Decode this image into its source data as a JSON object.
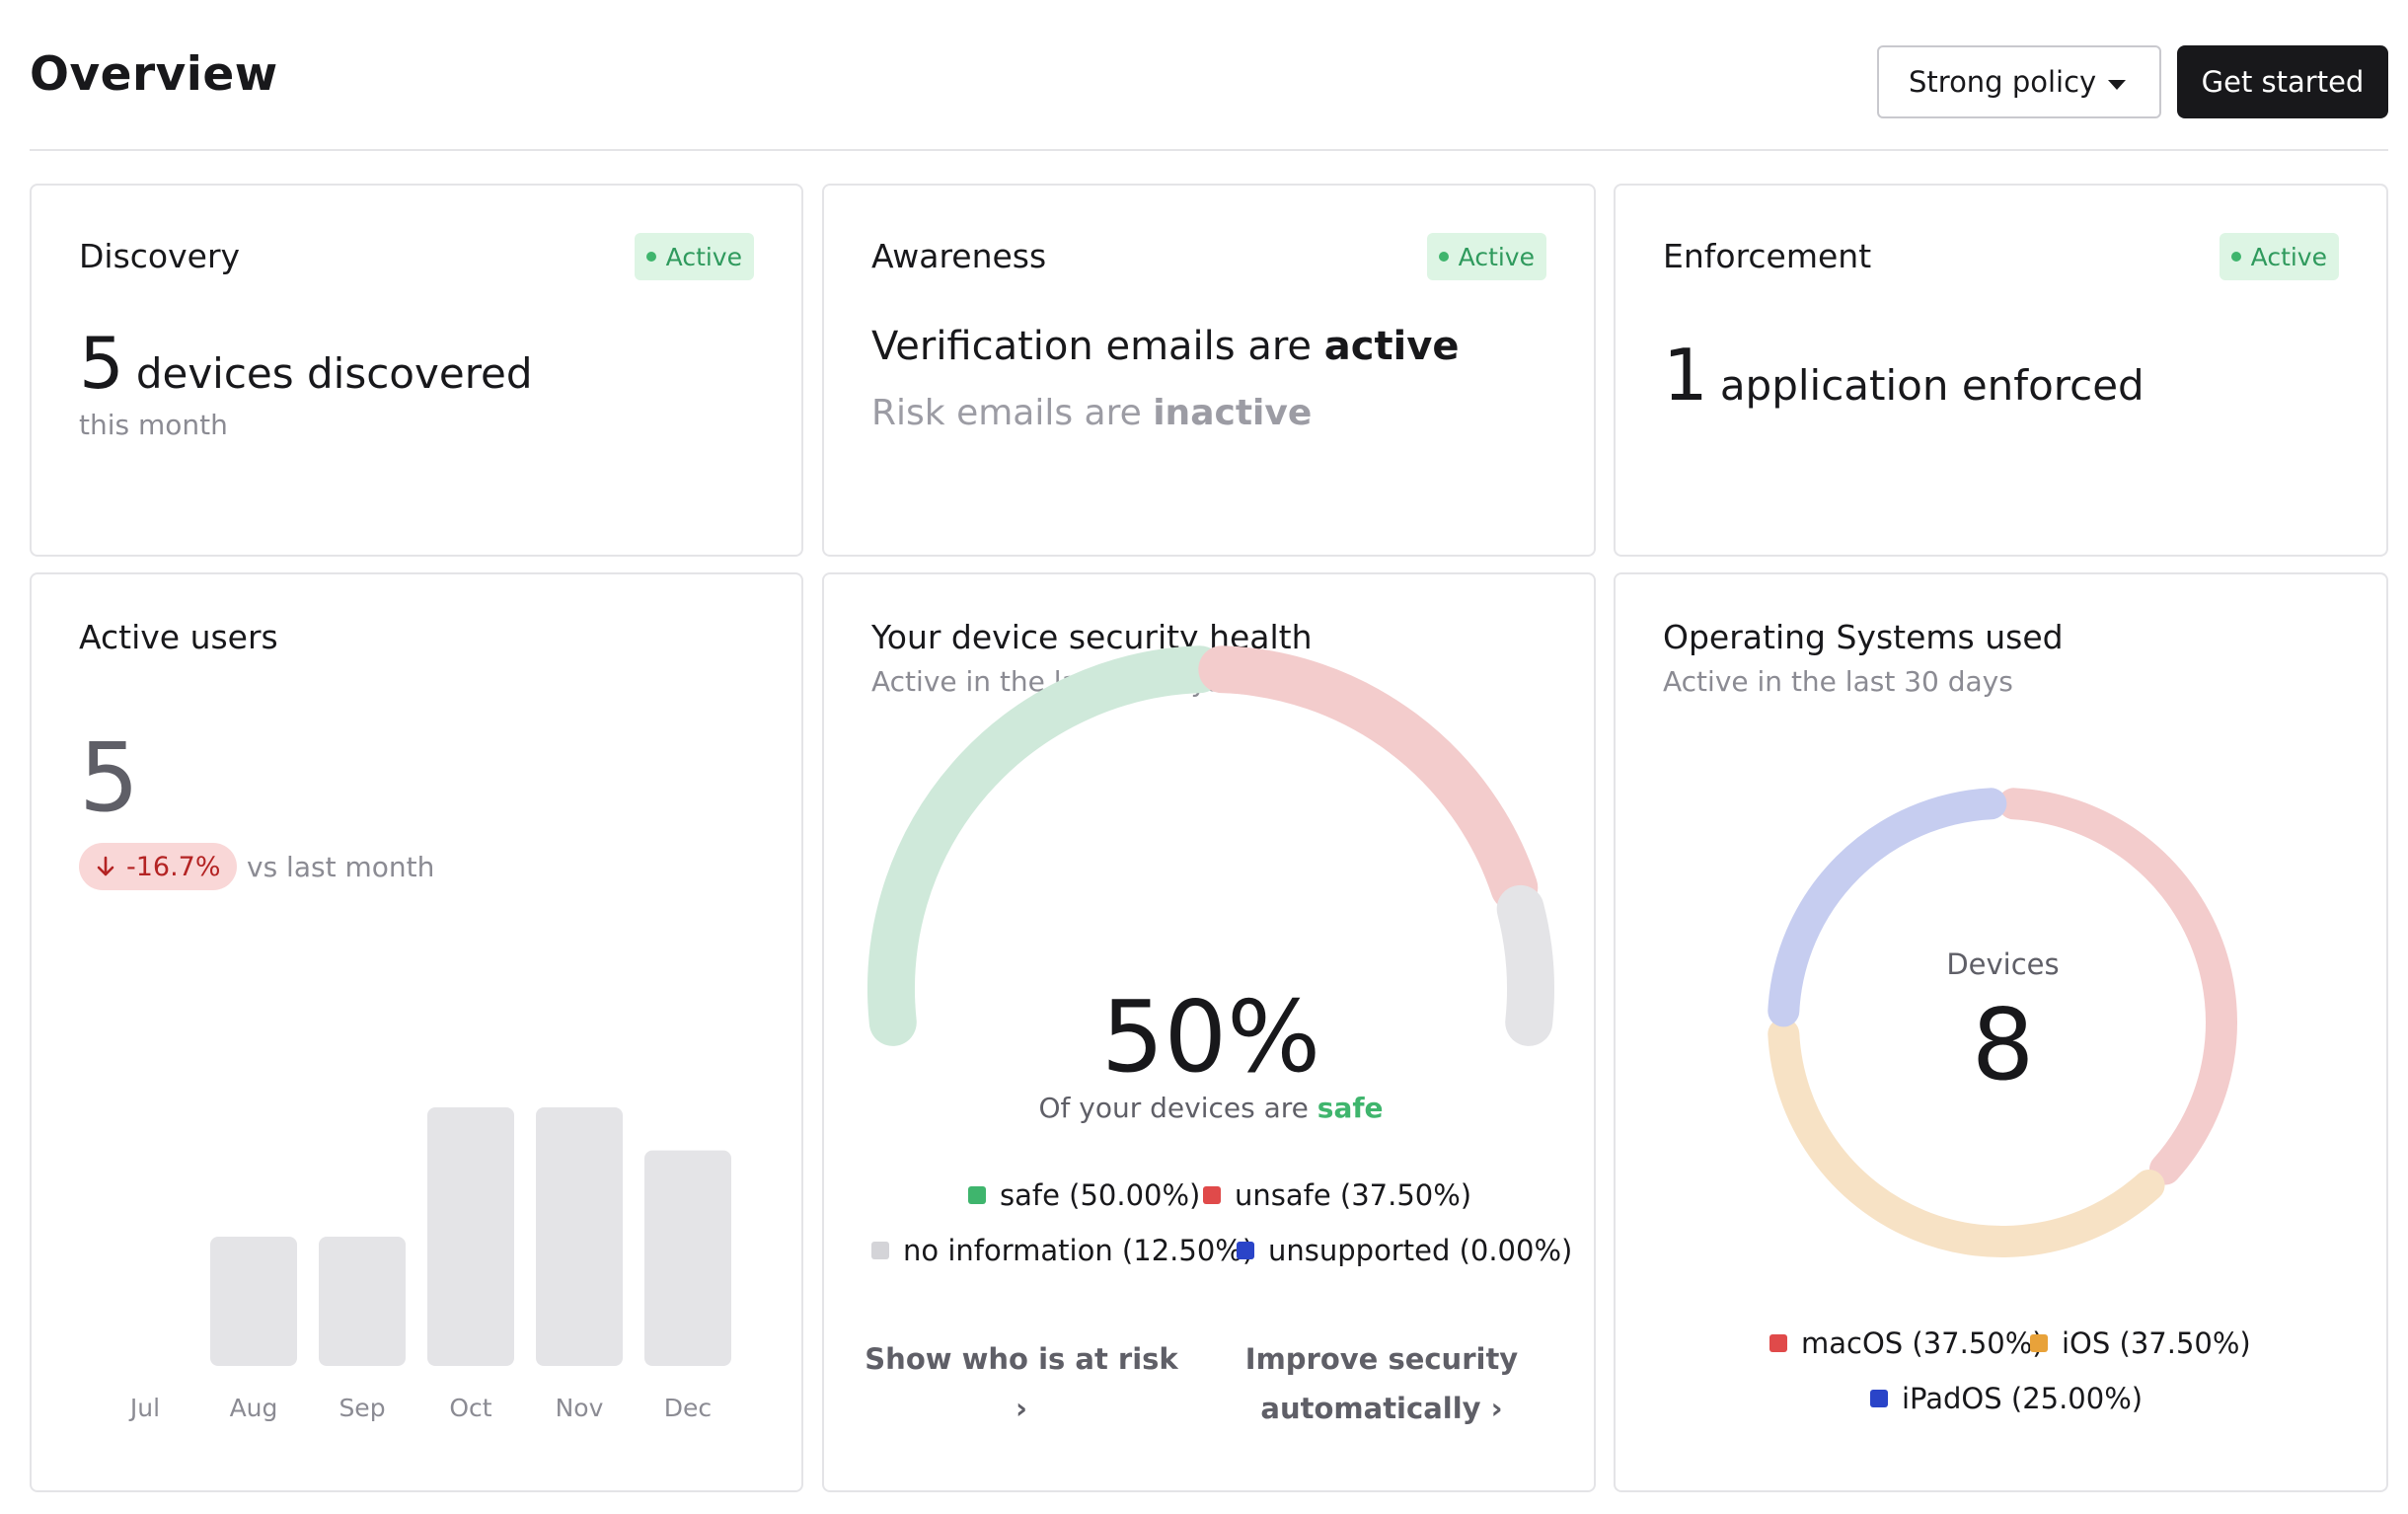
{
  "header": {
    "title": "Overview",
    "policy_select": "Strong policy",
    "cta_label": "Get started"
  },
  "cards": {
    "discovery": {
      "title": "Discovery",
      "badge": "Active",
      "stat_number": "5",
      "stat_text": "devices discovered",
      "subtext": "this month"
    },
    "awareness": {
      "title": "Awareness",
      "badge": "Active",
      "line1_prefix": "Verification emails are",
      "line1_status": "active",
      "line2_prefix": "Risk emails are",
      "line2_status": "inactive"
    },
    "enforcement": {
      "title": "Enforcement",
      "badge": "Active",
      "stat_number": "1",
      "stat_text": "application enforced"
    }
  },
  "active_users": {
    "title": "Active users",
    "value": "5",
    "delta": "-16.7%",
    "delta_note": "vs last month"
  },
  "security_health": {
    "title": "Your device security health",
    "subtitle": "Active in the last 30 days",
    "center_value": "50%",
    "center_caption_prefix": "Of your devices are",
    "center_caption_status": "safe",
    "legend": [
      {
        "label": "safe (50.00%)",
        "color": "#3fb56d"
      },
      {
        "label": "unsafe (37.50%)",
        "color": "#e04a4a"
      },
      {
        "label": "no information (12.50%)",
        "color": "#d4d4d8"
      },
      {
        "label": "unsupported (0.00%)",
        "color": "#2a44c8"
      }
    ],
    "actions": {
      "risk_line1": "Show who is at risk",
      "risk_line2": "›",
      "improve_line1": "Improve security",
      "improve_line2": "automatically ›"
    }
  },
  "operating_systems": {
    "title": "Operating Systems used",
    "subtitle": "Active in the last 30 days",
    "center_label": "Devices",
    "center_value": "8",
    "legend": [
      {
        "label": "macOS (37.50%)",
        "color": "#e04a4a"
      },
      {
        "label": "iOS (37.50%)",
        "color": "#e8a23a"
      },
      {
        "label": "iPadOS (25.00%)",
        "color": "#2a44c8"
      }
    ]
  },
  "chart_data": [
    {
      "type": "bar",
      "categories": [
        "Jul",
        "Aug",
        "Sep",
        "Oct",
        "Nov",
        "Dec"
      ],
      "values": [
        0,
        3,
        3,
        6,
        6,
        5
      ],
      "ylim": [
        0,
        6
      ],
      "grid": false
    },
    {
      "type": "pie",
      "style": "semicircle-gauge",
      "categories": [
        "safe",
        "unsafe",
        "no information",
        "unsupported"
      ],
      "values": [
        50.0,
        37.5,
        12.5,
        0.0
      ],
      "colors": [
        "#cfe9da",
        "#f3cccc",
        "#e4e4e7",
        "#c6cdf0"
      ]
    },
    {
      "type": "pie",
      "style": "donut",
      "categories": [
        "macOS",
        "iOS",
        "iPadOS"
      ],
      "values": [
        37.5,
        37.5,
        25.0
      ],
      "colors": [
        "#f3cccc",
        "#f7e2c5",
        "#c6cdf0"
      ]
    }
  ]
}
